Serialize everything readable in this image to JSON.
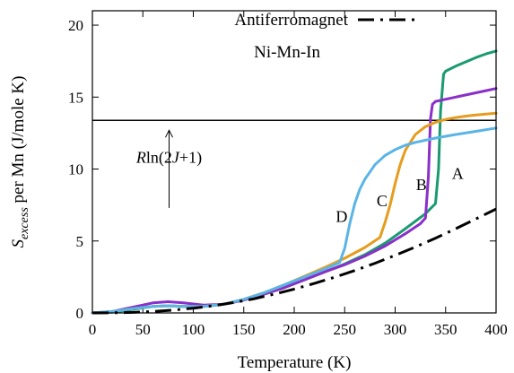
{
  "chart_data": {
    "type": "line",
    "title": "",
    "xlabel": "Temperature (K)",
    "ylabel": {
      "parts": [
        "S",
        "excess",
        " per Mn (J/mole K)"
      ]
    },
    "xlim": [
      0,
      400
    ],
    "ylim": [
      0,
      21
    ],
    "xticks": [
      0,
      50,
      100,
      150,
      200,
      250,
      300,
      350,
      400
    ],
    "yticks": [
      0,
      5,
      10,
      15,
      20
    ],
    "grid": false,
    "legend": {
      "placement": "top-left",
      "entries": [
        "Antiferromagnet",
        "Ni-Mn-In"
      ]
    },
    "reference_line": {
      "y": 13.38,
      "label_parts": [
        "R",
        "ln(2",
        "J",
        "+1)"
      ]
    },
    "annotations": [
      "A",
      "B",
      "C",
      "D"
    ],
    "colors": {
      "A": "#1a9a70",
      "B": "#8a2fc8",
      "C": "#e69c1e",
      "D": "#5ab4e6",
      "antiferromagnet": "#000000",
      "reference": "#000000"
    },
    "series": [
      {
        "name": "Antiferromagnet",
        "style": "dash-dot",
        "x": [
          0,
          20,
          40,
          60,
          80,
          100,
          120,
          140,
          160,
          180,
          200,
          220,
          240,
          260,
          280,
          300,
          320,
          340,
          360,
          380,
          400
        ],
        "y": [
          0,
          0.01,
          0.04,
          0.1,
          0.2,
          0.33,
          0.5,
          0.72,
          0.98,
          1.3,
          1.66,
          2.05,
          2.48,
          2.95,
          3.45,
          4.0,
          4.58,
          5.2,
          5.85,
          6.53,
          7.22
        ]
      },
      {
        "key": "A",
        "x": [
          0,
          20,
          40,
          60,
          75,
          90,
          110,
          130,
          150,
          170,
          190,
          210,
          230,
          250,
          270,
          290,
          310,
          330,
          340,
          343,
          345,
          348,
          350,
          360,
          370,
          380,
          390,
          400
        ],
        "y": [
          0,
          0.05,
          0.25,
          0.45,
          0.5,
          0.45,
          0.45,
          0.6,
          0.9,
          1.3,
          1.75,
          2.3,
          2.85,
          3.4,
          4.05,
          4.85,
          5.85,
          6.9,
          7.6,
          10.0,
          14.0,
          16.6,
          16.8,
          17.15,
          17.45,
          17.75,
          18.0,
          18.2
        ]
      },
      {
        "key": "B",
        "x": [
          0,
          20,
          40,
          60,
          75,
          90,
          110,
          130,
          150,
          170,
          190,
          210,
          230,
          250,
          270,
          290,
          310,
          325,
          330,
          333,
          335,
          337,
          340,
          350,
          360,
          370,
          380,
          390,
          400
        ],
        "y": [
          0,
          0.1,
          0.4,
          0.7,
          0.78,
          0.7,
          0.55,
          0.6,
          0.9,
          1.3,
          1.75,
          2.3,
          2.85,
          3.35,
          3.95,
          4.65,
          5.5,
          6.2,
          6.6,
          9.5,
          13.5,
          14.5,
          14.7,
          14.85,
          15.0,
          15.15,
          15.3,
          15.45,
          15.6
        ]
      },
      {
        "key": "C",
        "x": [
          0,
          20,
          40,
          60,
          75,
          90,
          110,
          130,
          150,
          170,
          190,
          210,
          230,
          250,
          270,
          285,
          290,
          295,
          300,
          305,
          310,
          320,
          330,
          340,
          350,
          360,
          370,
          380,
          390,
          400
        ],
        "y": [
          0,
          0.1,
          0.3,
          0.45,
          0.5,
          0.45,
          0.45,
          0.6,
          0.95,
          1.4,
          1.95,
          2.55,
          3.15,
          3.8,
          4.55,
          5.25,
          6.3,
          7.5,
          9.0,
          10.3,
          11.3,
          12.4,
          12.95,
          13.25,
          13.45,
          13.58,
          13.68,
          13.75,
          13.82,
          13.88
        ]
      },
      {
        "key": "D",
        "x": [
          0,
          20,
          40,
          60,
          75,
          90,
          110,
          130,
          150,
          170,
          190,
          210,
          230,
          245,
          250,
          255,
          260,
          265,
          270,
          280,
          290,
          300,
          310,
          320,
          340,
          360,
          380,
          400
        ],
        "y": [
          0,
          0.1,
          0.3,
          0.45,
          0.5,
          0.45,
          0.45,
          0.6,
          0.95,
          1.4,
          1.95,
          2.5,
          3.05,
          3.5,
          4.5,
          6.2,
          7.6,
          8.6,
          9.3,
          10.3,
          10.95,
          11.35,
          11.65,
          11.85,
          12.15,
          12.4,
          12.62,
          12.85
        ]
      }
    ]
  }
}
